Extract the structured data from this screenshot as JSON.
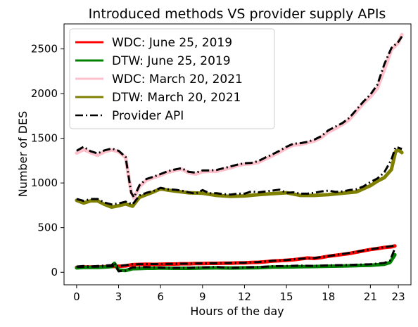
{
  "chart_data": {
    "type": "line",
    "title": "Introduced methods VS provider supply APIs",
    "xlabel": "Hours of the day",
    "ylabel": "Number of DES",
    "xlim": [
      -0.9,
      23.9
    ],
    "ylim": [
      -140,
      2780
    ],
    "xticks": [
      0,
      3,
      6,
      9,
      12,
      15,
      18,
      21,
      23
    ],
    "yticks": [
      0,
      500,
      1000,
      1500,
      2000,
      2500
    ],
    "legend": "upper-left",
    "grid": false,
    "series": [
      {
        "name": "WDC: June 25, 2019",
        "color": "#ff0000",
        "values": [
          [
            0,
            55
          ],
          [
            0.5,
            60
          ],
          [
            1,
            58
          ],
          [
            1.5,
            60
          ],
          [
            2,
            62
          ],
          [
            2.5,
            65
          ],
          [
            3,
            68
          ],
          [
            3.5,
            72
          ],
          [
            4,
            85
          ],
          [
            4.5,
            88
          ],
          [
            5,
            90
          ],
          [
            5.5,
            88
          ],
          [
            6,
            90
          ],
          [
            6.5,
            92
          ],
          [
            7,
            92
          ],
          [
            7.5,
            95
          ],
          [
            8,
            95
          ],
          [
            8.5,
            98
          ],
          [
            9,
            98
          ],
          [
            9.5,
            100
          ],
          [
            10,
            100
          ],
          [
            10.5,
            102
          ],
          [
            11,
            102
          ],
          [
            11.5,
            105
          ],
          [
            12,
            105
          ],
          [
            12.5,
            110
          ],
          [
            13,
            112
          ],
          [
            13.5,
            118
          ],
          [
            14,
            125
          ],
          [
            14.5,
            130
          ],
          [
            15,
            135
          ],
          [
            15.5,
            140
          ],
          [
            16,
            150
          ],
          [
            16.5,
            160
          ],
          [
            17,
            155
          ],
          [
            17.5,
            165
          ],
          [
            18,
            180
          ],
          [
            18.5,
            190
          ],
          [
            19,
            200
          ],
          [
            19.5,
            210
          ],
          [
            20,
            225
          ],
          [
            20.5,
            240
          ],
          [
            21,
            255
          ],
          [
            21.5,
            265
          ],
          [
            22,
            278
          ],
          [
            22.5,
            285
          ],
          [
            22.75,
            295
          ]
        ]
      },
      {
        "name": "DTW: June 25, 2019",
        "color": "#008000",
        "values": [
          [
            0,
            50
          ],
          [
            0.5,
            55
          ],
          [
            1,
            55
          ],
          [
            1.5,
            55
          ],
          [
            2,
            58
          ],
          [
            2.5,
            65
          ],
          [
            2.7,
            100
          ],
          [
            3,
            25
          ],
          [
            3.5,
            20
          ],
          [
            4,
            40
          ],
          [
            4.5,
            42
          ],
          [
            5,
            45
          ],
          [
            5.5,
            45
          ],
          [
            6,
            48
          ],
          [
            7,
            45
          ],
          [
            8,
            45
          ],
          [
            9,
            48
          ],
          [
            10,
            50
          ],
          [
            11,
            48
          ],
          [
            12,
            50
          ],
          [
            13,
            52
          ],
          [
            14,
            58
          ],
          [
            15,
            60
          ],
          [
            16,
            62
          ],
          [
            17,
            65
          ],
          [
            18,
            68
          ],
          [
            19,
            70
          ],
          [
            20,
            75
          ],
          [
            21,
            78
          ],
          [
            22,
            90
          ],
          [
            22.4,
            110
          ],
          [
            22.75,
            195
          ]
        ]
      },
      {
        "name": "WDC:  March 20, 2021",
        "color": "#ffc0cb",
        "values": [
          [
            0,
            1335
          ],
          [
            0.5,
            1375
          ],
          [
            1,
            1340
          ],
          [
            1.5,
            1310
          ],
          [
            2,
            1350
          ],
          [
            2.5,
            1370
          ],
          [
            3,
            1350
          ],
          [
            3.5,
            1285
          ],
          [
            3.9,
            900
          ],
          [
            4.1,
            830
          ],
          [
            4.5,
            960
          ],
          [
            5,
            1030
          ],
          [
            5.5,
            1060
          ],
          [
            6,
            1085
          ],
          [
            6.5,
            1120
          ],
          [
            7,
            1140
          ],
          [
            7.5,
            1155
          ],
          [
            8,
            1115
          ],
          [
            8.5,
            1100
          ],
          [
            9,
            1125
          ],
          [
            9.5,
            1130
          ],
          [
            10,
            1130
          ],
          [
            10.5,
            1150
          ],
          [
            11,
            1170
          ],
          [
            11.5,
            1195
          ],
          [
            12,
            1210
          ],
          [
            12.5,
            1215
          ],
          [
            13,
            1230
          ],
          [
            13.5,
            1270
          ],
          [
            14,
            1305
          ],
          [
            14.5,
            1345
          ],
          [
            15,
            1390
          ],
          [
            15.5,
            1425
          ],
          [
            16,
            1430
          ],
          [
            16.5,
            1450
          ],
          [
            17,
            1470
          ],
          [
            17.5,
            1510
          ],
          [
            18,
            1570
          ],
          [
            18.5,
            1610
          ],
          [
            19,
            1655
          ],
          [
            19.5,
            1710
          ],
          [
            20,
            1800
          ],
          [
            20.5,
            1890
          ],
          [
            21,
            1965
          ],
          [
            21.5,
            2060
          ],
          [
            22,
            2270
          ],
          [
            22.5,
            2490
          ],
          [
            23,
            2570
          ],
          [
            23.25,
            2660
          ]
        ]
      },
      {
        "name": "DTW: March 20, 2021",
        "color": "#808000",
        "values": [
          [
            0,
            805
          ],
          [
            0.5,
            775
          ],
          [
            1,
            800
          ],
          [
            1.5,
            800
          ],
          [
            2,
            760
          ],
          [
            2.5,
            730
          ],
          [
            3,
            745
          ],
          [
            3.5,
            765
          ],
          [
            4,
            740
          ],
          [
            4.5,
            840
          ],
          [
            5,
            870
          ],
          [
            5.5,
            900
          ],
          [
            6,
            935
          ],
          [
            6.5,
            920
          ],
          [
            7,
            910
          ],
          [
            8,
            890
          ],
          [
            9,
            885
          ],
          [
            10,
            860
          ],
          [
            11,
            850
          ],
          [
            12,
            855
          ],
          [
            13,
            870
          ],
          [
            14,
            880
          ],
          [
            15,
            890
          ],
          [
            16,
            860
          ],
          [
            17,
            860
          ],
          [
            18,
            870
          ],
          [
            19,
            885
          ],
          [
            20,
            900
          ],
          [
            21,
            970
          ],
          [
            21.5,
            1020
          ],
          [
            22,
            1060
          ],
          [
            22.5,
            1150
          ],
          [
            22.8,
            1350
          ],
          [
            23,
            1370
          ],
          [
            23.25,
            1340
          ]
        ]
      },
      {
        "name": "Provider API",
        "color": "#000000",
        "values": [
          [
            0,
            1360
          ],
          [
            0.5,
            1405
          ],
          [
            1,
            1355
          ],
          [
            1.5,
            1330
          ],
          [
            2,
            1365
          ],
          [
            2.5,
            1385
          ],
          [
            3,
            1360
          ],
          [
            3.5,
            1290
          ],
          [
            3.9,
            890
          ],
          [
            4.1,
            840
          ],
          [
            4.5,
            975
          ],
          [
            5,
            1045
          ],
          [
            5.5,
            1070
          ],
          [
            6,
            1100
          ],
          [
            6.5,
            1130
          ],
          [
            7,
            1150
          ],
          [
            7.5,
            1165
          ],
          [
            8,
            1125
          ],
          [
            8.5,
            1115
          ],
          [
            9,
            1140
          ],
          [
            9.5,
            1140
          ],
          [
            10,
            1145
          ],
          [
            10.5,
            1165
          ],
          [
            11,
            1185
          ],
          [
            11.5,
            1205
          ],
          [
            12,
            1220
          ],
          [
            12.5,
            1225
          ],
          [
            13,
            1245
          ],
          [
            13.5,
            1285
          ],
          [
            14,
            1320
          ],
          [
            14.5,
            1360
          ],
          [
            15,
            1405
          ],
          [
            15.5,
            1440
          ],
          [
            16,
            1445
          ],
          [
            16.5,
            1460
          ],
          [
            17,
            1485
          ],
          [
            17.5,
            1525
          ],
          [
            18,
            1590
          ],
          [
            18.5,
            1630
          ],
          [
            19,
            1670
          ],
          [
            19.5,
            1730
          ],
          [
            20,
            1820
          ],
          [
            20.5,
            1910
          ],
          [
            21,
            1990
          ],
          [
            21.5,
            2100
          ],
          [
            22,
            2330
          ],
          [
            22.5,
            2510
          ],
          [
            23,
            2580
          ],
          [
            23.25,
            2640
          ]
        ]
      },
      {
        "name": "",
        "color": "#000000",
        "values": [
          [
            0,
            820
          ],
          [
            0.5,
            800
          ],
          [
            1,
            820
          ],
          [
            1.5,
            820
          ],
          [
            2,
            780
          ],
          [
            2.5,
            760
          ],
          [
            3,
            770
          ],
          [
            3.5,
            790
          ],
          [
            4,
            760
          ],
          [
            4.5,
            860
          ],
          [
            5,
            890
          ],
          [
            5.5,
            910
          ],
          [
            6,
            945
          ],
          [
            6.5,
            930
          ],
          [
            7,
            925
          ],
          [
            7.5,
            915
          ],
          [
            8,
            895
          ],
          [
            8.5,
            880
          ],
          [
            9,
            920
          ],
          [
            9.5,
            885
          ],
          [
            10,
            885
          ],
          [
            10.5,
            875
          ],
          [
            11,
            870
          ],
          [
            11.5,
            880
          ],
          [
            12,
            880
          ],
          [
            12.5,
            905
          ],
          [
            13,
            895
          ],
          [
            13.5,
            905
          ],
          [
            14,
            915
          ],
          [
            14.5,
            925
          ],
          [
            15,
            890
          ],
          [
            15.5,
            895
          ],
          [
            16,
            880
          ],
          [
            16.5,
            880
          ],
          [
            17,
            890
          ],
          [
            17.5,
            905
          ],
          [
            18,
            915
          ],
          [
            18.5,
            900
          ],
          [
            19,
            905
          ],
          [
            19.5,
            920
          ],
          [
            20,
            930
          ],
          [
            20.5,
            960
          ],
          [
            21,
            1010
          ],
          [
            21.5,
            1050
          ],
          [
            22,
            1120
          ],
          [
            22.5,
            1260
          ],
          [
            22.8,
            1400
          ],
          [
            23,
            1395
          ],
          [
            23.25,
            1380
          ]
        ]
      },
      {
        "name": "",
        "color": "#000000",
        "values": [
          [
            0,
            65
          ],
          [
            0.5,
            70
          ],
          [
            1,
            65
          ],
          [
            1.5,
            70
          ],
          [
            2,
            75
          ],
          [
            2.5,
            80
          ],
          [
            2.7,
            110
          ],
          [
            3,
            10
          ],
          [
            3.5,
            20
          ],
          [
            4,
            55
          ],
          [
            4.5,
            55
          ],
          [
            5,
            58
          ],
          [
            5.5,
            55
          ],
          [
            6,
            52
          ],
          [
            7,
            50
          ],
          [
            8,
            50
          ],
          [
            9,
            55
          ],
          [
            10,
            60
          ],
          [
            11,
            50
          ],
          [
            12,
            55
          ],
          [
            13,
            58
          ],
          [
            14,
            68
          ],
          [
            15,
            70
          ],
          [
            16,
            75
          ],
          [
            17,
            72
          ],
          [
            18,
            78
          ],
          [
            19,
            80
          ],
          [
            20,
            85
          ],
          [
            21,
            90
          ],
          [
            22,
            105
          ],
          [
            22.4,
            130
          ],
          [
            22.75,
            265
          ]
        ]
      },
      {
        "name": "",
        "color": "#000000",
        "values": [
          [
            0,
            60
          ],
          [
            1,
            62
          ],
          [
            2,
            65
          ],
          [
            3,
            70
          ],
          [
            4,
            90
          ],
          [
            5,
            92
          ],
          [
            6,
            92
          ],
          [
            7,
            95
          ],
          [
            8,
            98
          ],
          [
            9,
            100
          ],
          [
            10,
            102
          ],
          [
            11,
            105
          ],
          [
            12,
            108
          ],
          [
            13,
            115
          ],
          [
            14,
            128
          ],
          [
            15,
            138
          ],
          [
            16,
            152
          ],
          [
            17,
            160
          ],
          [
            18,
            182
          ],
          [
            19,
            205
          ],
          [
            20,
            230
          ],
          [
            21,
            258
          ],
          [
            22,
            280
          ],
          [
            22.75,
            300
          ]
        ]
      }
    ]
  }
}
